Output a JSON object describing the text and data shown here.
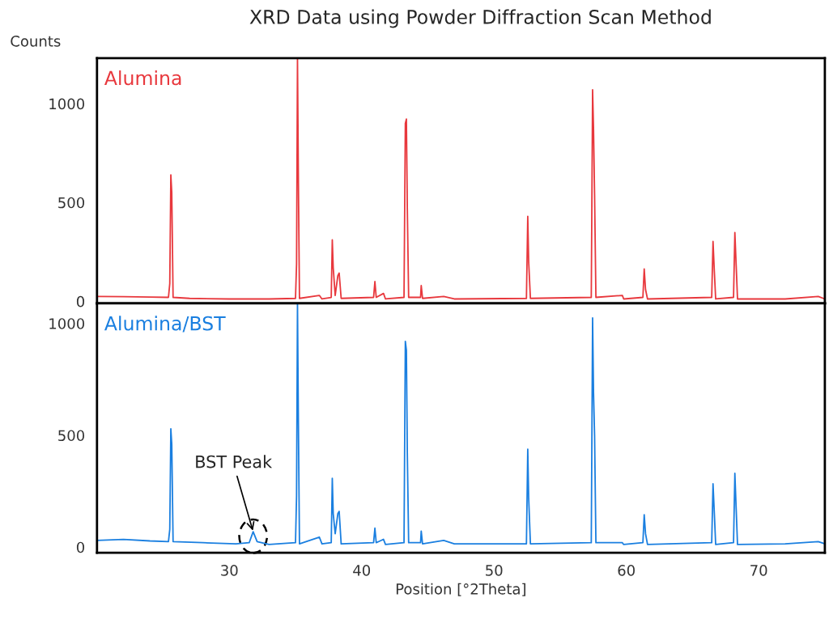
{
  "chart_data": [
    {
      "type": "line",
      "title": "XRD Data using Powder Diffraction Scan Method",
      "ylabel": "Counts",
      "xlim": [
        20,
        75
      ],
      "ylim": [
        -10,
        1230
      ],
      "yticks": [
        0,
        500,
        1000
      ],
      "tick_labels": "y",
      "grid": false,
      "series": [
        {
          "name": "Alumina",
          "color": "#e8383d",
          "x": [
            20,
            22,
            24,
            25.4,
            25.5,
            25.58,
            25.65,
            25.75,
            27,
            30,
            33,
            35.0,
            35.08,
            35.15,
            35.22,
            35.3,
            36.8,
            37.0,
            37.7,
            37.78,
            37.85,
            38.0,
            38.2,
            38.3,
            38.45,
            40.9,
            41.0,
            41.1,
            41.65,
            41.8,
            43.2,
            43.3,
            43.38,
            43.45,
            43.55,
            44.45,
            44.5,
            44.6,
            46.2,
            47,
            52.45,
            52.55,
            52.62,
            52.75,
            57.35,
            57.45,
            57.52,
            57.6,
            57.7,
            59.7,
            59.8,
            61.25,
            61.35,
            61.45,
            61.6,
            66.45,
            66.55,
            66.65,
            66.75,
            68.1,
            68.2,
            68.3,
            68.4,
            72,
            74.5,
            75
          ],
          "values": [
            25,
            24,
            22,
            20,
            90,
            640,
            550,
            20,
            15,
            12,
            12,
            15,
            190,
            1230,
            600,
            15,
            30,
            12,
            20,
            311,
            170,
            30,
            130,
            143,
            15,
            20,
            100,
            20,
            40,
            12,
            20,
            900,
            922,
            470,
            20,
            20,
            80,
            15,
            25,
            12,
            15,
            430,
            200,
            15,
            20,
            1070,
            870,
            540,
            20,
            30,
            12,
            20,
            164,
            60,
            12,
            20,
            303,
            150,
            12,
            20,
            348,
            180,
            12,
            12,
            25,
            12
          ]
        }
      ]
    },
    {
      "type": "line",
      "xlabel": "Position [°2Theta]",
      "xlim": [
        20,
        75
      ],
      "ylim": [
        -25,
        1090
      ],
      "xticks": [
        30,
        40,
        50,
        60,
        70
      ],
      "yticks": [
        0,
        500,
        1000
      ],
      "grid": false,
      "annotations": [
        {
          "text": "BST Peak",
          "x": 31.8,
          "y": 69
        }
      ],
      "series": [
        {
          "name": "Alumina/BST",
          "color": "#1a7fe0",
          "x": [
            20,
            22,
            24,
            25.4,
            25.5,
            25.58,
            25.65,
            25.75,
            28,
            30.5,
            31.5,
            31.8,
            32.1,
            33,
            35.0,
            35.08,
            35.15,
            35.22,
            35.3,
            36.8,
            37.0,
            37.7,
            37.78,
            37.85,
            38.0,
            38.2,
            38.3,
            38.45,
            40.9,
            41.0,
            41.1,
            41.65,
            41.8,
            43.2,
            43.3,
            43.38,
            43.45,
            43.55,
            44.45,
            44.5,
            44.6,
            46.2,
            47,
            52.45,
            52.55,
            52.62,
            52.75,
            57.35,
            57.45,
            57.52,
            57.6,
            57.7,
            59.7,
            59.8,
            61.25,
            61.35,
            61.45,
            61.6,
            66.45,
            66.55,
            66.65,
            66.75,
            68.1,
            68.2,
            68.3,
            68.4,
            72,
            74.5,
            75
          ],
          "values": [
            30,
            35,
            28,
            25,
            80,
            529,
            460,
            25,
            20,
            15,
            20,
            69,
            25,
            12,
            20,
            230,
            1090,
            550,
            15,
            45,
            15,
            20,
            308,
            150,
            60,
            150,
            160,
            15,
            20,
            85,
            20,
            35,
            12,
            20,
            920,
            880,
            420,
            20,
            20,
            72,
            15,
            30,
            15,
            15,
            438,
            220,
            15,
            20,
            1025,
            690,
            500,
            20,
            20,
            12,
            20,
            145,
            60,
            12,
            20,
            283,
            150,
            12,
            20,
            330,
            170,
            12,
            15,
            25,
            15
          ]
        }
      ]
    }
  ]
}
